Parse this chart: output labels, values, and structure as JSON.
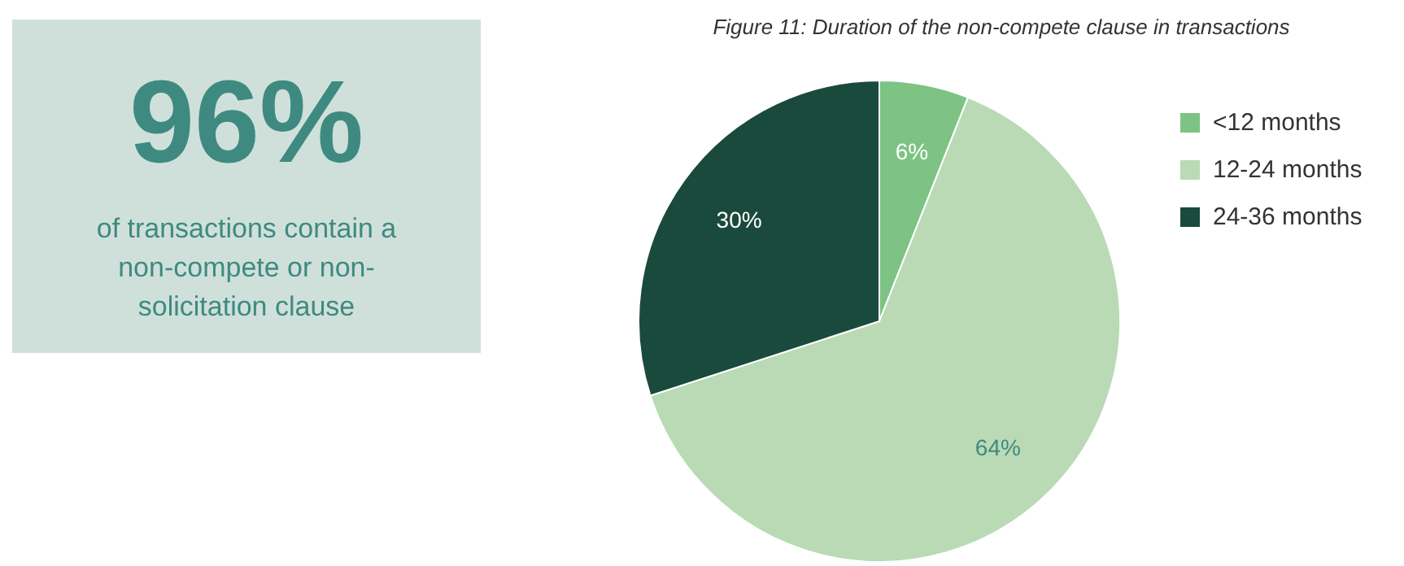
{
  "chart_data": [
    {
      "type": "other",
      "title": "96%",
      "annotations": [
        "of transactions contain a non-compete or non-solicitation clause"
      ]
    },
    {
      "type": "pie",
      "title": "Figure 11: Duration of the non-compete clause in transactions",
      "categories": [
        "<12 months",
        "12-24 months",
        "24-36 months"
      ],
      "values": [
        6,
        64,
        30
      ],
      "colors": [
        "#7dc383",
        "#b9dab5",
        "#1a4a3c"
      ],
      "value_labels": [
        "6%",
        "64%",
        "30%"
      ],
      "legend": "right"
    }
  ]
}
